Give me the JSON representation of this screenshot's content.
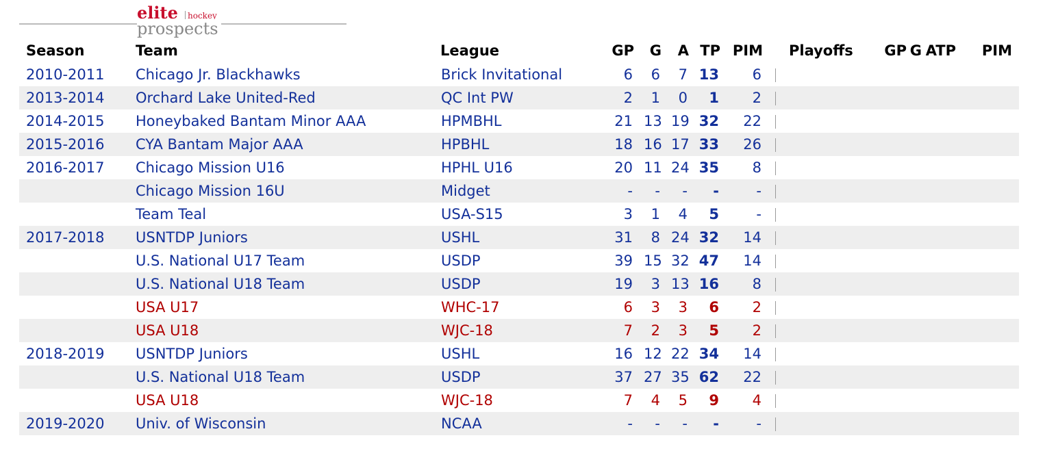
{
  "header": {
    "logo_main": "elite",
    "logo_small": "hockey",
    "logo_sub": "prospects"
  },
  "table": {
    "columns": [
      "Season",
      "Team",
      "League",
      "GP",
      "G",
      "A",
      "TP",
      "PIM",
      "Playoffs",
      "GP",
      "G",
      "A",
      "TP",
      "PIM"
    ],
    "colors": {
      "club": "#13309a",
      "international": "#b00000"
    },
    "rows": [
      {
        "season": "2010-2011",
        "team": "Chicago Jr. Blackhawks",
        "league": "Brick Invitational",
        "gp": 6,
        "g": 6,
        "a": 7,
        "tp": 13,
        "pim": 6,
        "kind": "club"
      },
      {
        "season": "2013-2014",
        "team": "Orchard Lake United-Red",
        "league": "QC Int PW",
        "gp": 2,
        "g": 1,
        "a": 0,
        "tp": 1,
        "pim": 2,
        "kind": "club"
      },
      {
        "season": "2014-2015",
        "team": "Honeybaked Bantam Minor AAA",
        "league": "HPMBHL",
        "gp": 21,
        "g": 13,
        "a": 19,
        "tp": 32,
        "pim": 22,
        "kind": "club"
      },
      {
        "season": "2015-2016",
        "team": "CYA Bantam Major AAA",
        "league": "HPBHL",
        "gp": 18,
        "g": 16,
        "a": 17,
        "tp": 33,
        "pim": 26,
        "kind": "club"
      },
      {
        "season": "2016-2017",
        "team": "Chicago Mission U16",
        "league": "HPHL U16",
        "gp": 20,
        "g": 11,
        "a": 24,
        "tp": 35,
        "pim": 8,
        "kind": "club"
      },
      {
        "season": null,
        "team": "Chicago Mission 16U",
        "league": "Midget",
        "gp": "-",
        "g": "-",
        "a": "-",
        "tp": "-",
        "pim": "-",
        "kind": "club"
      },
      {
        "season": null,
        "team": "Team Teal",
        "league": "USA-S15",
        "gp": 3,
        "g": 1,
        "a": 4,
        "tp": 5,
        "pim": "-",
        "kind": "club"
      },
      {
        "season": "2017-2018",
        "team": "USNTDP Juniors",
        "league": "USHL",
        "gp": 31,
        "g": 8,
        "a": 24,
        "tp": 32,
        "pim": 14,
        "kind": "club"
      },
      {
        "season": null,
        "team": "U.S. National U17 Team",
        "league": "USDP",
        "gp": 39,
        "g": 15,
        "a": 32,
        "tp": 47,
        "pim": 14,
        "kind": "club"
      },
      {
        "season": null,
        "team": "U.S. National U18 Team",
        "league": "USDP",
        "gp": 19,
        "g": 3,
        "a": 13,
        "tp": 16,
        "pim": 8,
        "kind": "club"
      },
      {
        "season": null,
        "team": "USA U17",
        "league": "WHC-17",
        "gp": 6,
        "g": 3,
        "a": 3,
        "tp": 6,
        "pim": 2,
        "kind": "international"
      },
      {
        "season": null,
        "team": "USA U18",
        "league": "WJC-18",
        "gp": 7,
        "g": 2,
        "a": 3,
        "tp": 5,
        "pim": 2,
        "kind": "international"
      },
      {
        "season": "2018-2019",
        "team": "USNTDP Juniors",
        "league": "USHL",
        "gp": 16,
        "g": 12,
        "a": 22,
        "tp": 34,
        "pim": 14,
        "kind": "club"
      },
      {
        "season": null,
        "team": "U.S. National U18 Team",
        "league": "USDP",
        "gp": 37,
        "g": 27,
        "a": 35,
        "tp": 62,
        "pim": 22,
        "kind": "club"
      },
      {
        "season": null,
        "team": "USA U18",
        "league": "WJC-18",
        "gp": 7,
        "g": 4,
        "a": 5,
        "tp": 9,
        "pim": 4,
        "kind": "international"
      },
      {
        "season": "2019-2020",
        "team": "Univ. of Wisconsin",
        "league": "NCAA",
        "gp": "-",
        "g": "-",
        "a": "-",
        "tp": "-",
        "pim": "-",
        "kind": "club"
      }
    ]
  }
}
